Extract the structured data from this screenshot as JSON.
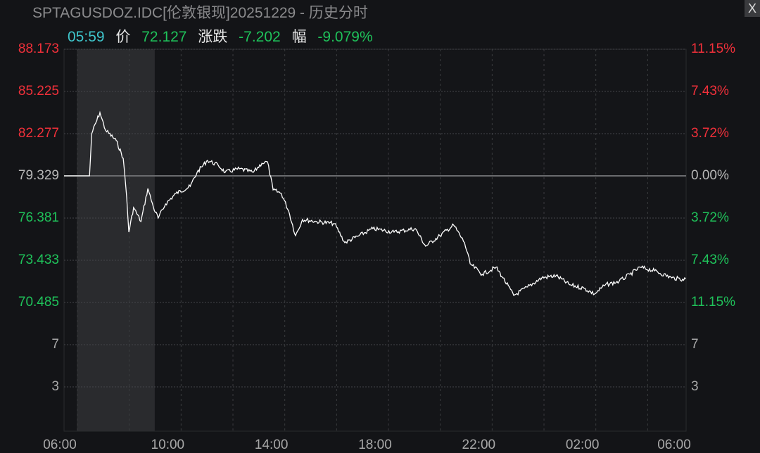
{
  "header": {
    "title": "SPTAGUSDOZ.IDC[伦敦银现]20251229 - 历史分时",
    "close_label": "X"
  },
  "info": {
    "time": "05:59",
    "price_label": "价",
    "price": "72.127",
    "change_label": "涨跌",
    "change": "-7.202",
    "pct_label": "幅",
    "pct": "-9.079%"
  },
  "colors": {
    "up": "#f0303a",
    "down": "#1fc25a",
    "neutral": "#b8b8b8",
    "line": "#ffffff",
    "time": "#3fc6cc"
  },
  "chart_data": {
    "type": "line",
    "title": "",
    "prev_close": 79.329,
    "ylim": [
      70.485,
      88.173
    ],
    "y_ticks_left": [
      {
        "label": "88.173",
        "dir": "up"
      },
      {
        "label": "85.225",
        "dir": "up"
      },
      {
        "label": "82.277",
        "dir": "up"
      },
      {
        "label": "79.329",
        "dir": "flat"
      },
      {
        "label": "76.381",
        "dir": "down"
      },
      {
        "label": "73.433",
        "dir": "down"
      },
      {
        "label": "70.485",
        "dir": "down"
      }
    ],
    "y_ticks_right": [
      {
        "label": "11.15%",
        "dir": "up"
      },
      {
        "label": "7.43%",
        "dir": "up"
      },
      {
        "label": "3.72%",
        "dir": "up"
      },
      {
        "label": "0.00%",
        "dir": "flat"
      },
      {
        "label": "3.72%",
        "dir": "down"
      },
      {
        "label": "7.43%",
        "dir": "down"
      },
      {
        "label": "11.15%",
        "dir": "down"
      }
    ],
    "volume_ticks": [
      "7",
      "3"
    ],
    "x_ticks": [
      "06:00",
      "10:00",
      "14:00",
      "18:00",
      "22:00",
      "02:00",
      "06:00"
    ],
    "shaded_session": [
      "06:30",
      "09:30"
    ],
    "grid": true,
    "series": [
      {
        "points": [
          [
            "06:00",
            79.329
          ],
          [
            "06:59",
            79.329
          ],
          [
            "07:04",
            82.277
          ],
          [
            "07:23",
            83.751
          ],
          [
            "07:36",
            82.523
          ],
          [
            "08:01",
            81.786
          ],
          [
            "08:17",
            80.557
          ],
          [
            "08:25",
            77.855
          ],
          [
            "08:30",
            75.398
          ],
          [
            "08:41",
            77.118
          ],
          [
            "08:58",
            76.135
          ],
          [
            "09:14",
            78.445
          ],
          [
            "09:27",
            77.118
          ],
          [
            "09:38",
            76.381
          ],
          [
            "09:55",
            77.364
          ],
          [
            "10:19",
            78.101
          ],
          [
            "10:52",
            78.592
          ],
          [
            "11:08",
            79.575
          ],
          [
            "11:32",
            80.41
          ],
          [
            "11:57",
            80.066
          ],
          [
            "12:13",
            79.575
          ],
          [
            "12:46",
            79.82
          ],
          [
            "13:18",
            79.575
          ],
          [
            "13:38",
            80.213
          ],
          [
            "13:51",
            80.312
          ],
          [
            "14:04",
            78.346
          ],
          [
            "14:23",
            78.101
          ],
          [
            "14:40",
            76.873
          ],
          [
            "14:56",
            75.153
          ],
          [
            "15:12",
            76.283
          ],
          [
            "15:45",
            76.135
          ],
          [
            "16:26",
            75.988
          ],
          [
            "16:50",
            74.662
          ],
          [
            "17:23",
            75.153
          ],
          [
            "17:55",
            75.644
          ],
          [
            "18:44",
            75.398
          ],
          [
            "19:33",
            75.644
          ],
          [
            "19:57",
            74.416
          ],
          [
            "20:30",
            75.153
          ],
          [
            "21:02",
            75.89
          ],
          [
            "21:27",
            74.662
          ],
          [
            "21:40",
            73.188
          ],
          [
            "22:08",
            72.451
          ],
          [
            "22:40",
            72.942
          ],
          [
            "22:56",
            72.205
          ],
          [
            "23:21",
            70.977
          ],
          [
            "23:53",
            71.567
          ],
          [
            "00:26",
            72.205
          ],
          [
            "00:59",
            72.353
          ],
          [
            "01:31",
            71.714
          ],
          [
            "02:04",
            71.468
          ],
          [
            "02:28",
            71.075
          ],
          [
            "02:53",
            71.714
          ],
          [
            "03:25",
            71.96
          ],
          [
            "03:50",
            72.451
          ],
          [
            "04:14",
            72.942
          ],
          [
            "04:47",
            72.697
          ],
          [
            "05:27",
            72.205
          ],
          [
            "05:52",
            72.107
          ],
          [
            "05:59",
            72.127
          ]
        ]
      }
    ]
  }
}
